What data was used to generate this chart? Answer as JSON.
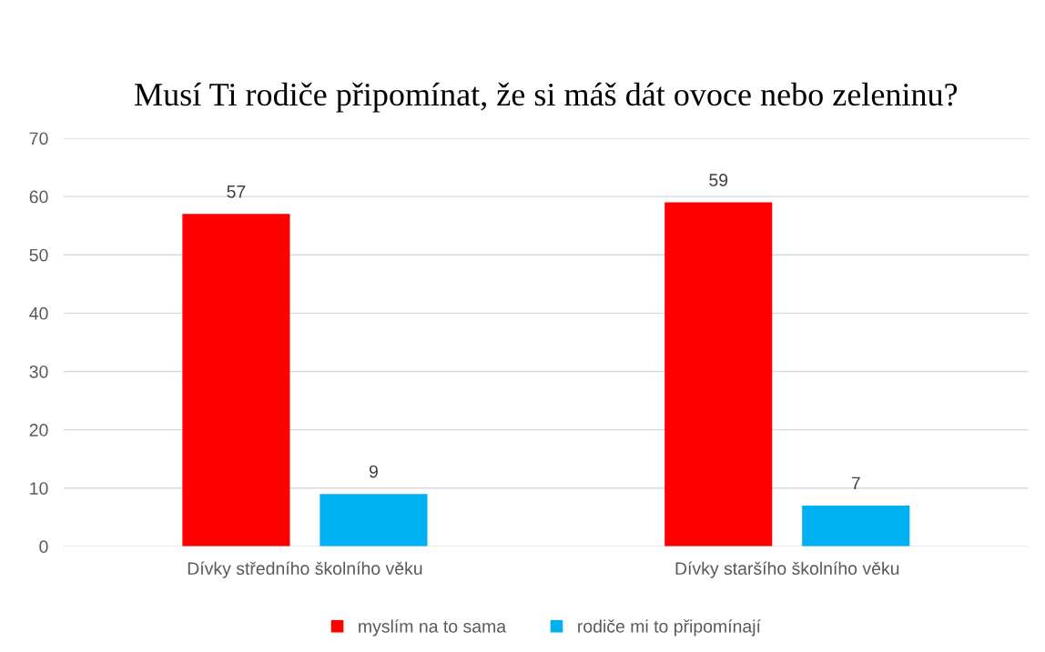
{
  "chart_data": {
    "type": "bar",
    "title": "Musí Ti rodiče připomínat, že si máš dát ovoce nebo zeleninu?",
    "categories": [
      "Dívky středního školního věku",
      "Dívky staršího školního věku"
    ],
    "series": [
      {
        "name": "myslím na to sama",
        "color": "#ff0000",
        "values": [
          57,
          59
        ]
      },
      {
        "name": "rodiče mi to připomínají",
        "color": "#00b0f0",
        "values": [
          9,
          7
        ]
      }
    ],
    "ylim": [
      0,
      70
    ],
    "yticks": [
      0,
      10,
      20,
      30,
      40,
      50,
      60,
      70
    ],
    "grid": "y",
    "legend": "bottom",
    "data_labels": true
  }
}
